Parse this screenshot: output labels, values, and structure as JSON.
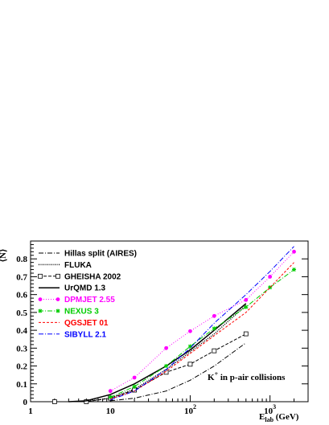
{
  "chart_data": {
    "type": "line",
    "x_scale": "log",
    "xlim": [
      1,
      3000
    ],
    "ylim": [
      0,
      0.9
    ],
    "xlabel": "E_lab (GeV)",
    "xlabel_main": "E",
    "xlabel_sub": "lab",
    "xlabel_unit": " (GeV)",
    "ylabel": "⟨N⟩",
    "annotation": "K+ in p-air collisions",
    "annotation_main": "K",
    "annotation_sup": "+",
    "annotation_rest": " in p-air collisions",
    "x_ticks": [
      {
        "value": 1,
        "label": "1"
      },
      {
        "value": 10,
        "label": "10"
      },
      {
        "value": 100,
        "label": "10",
        "exp": "2"
      },
      {
        "value": 1000,
        "label": "10",
        "exp": "3"
      }
    ],
    "y_ticks": [
      {
        "value": 0,
        "label": "0"
      },
      {
        "value": 0.1,
        "label": "0.1"
      },
      {
        "value": 0.2,
        "label": "0.2"
      },
      {
        "value": 0.3,
        "label": "0.3"
      },
      {
        "value": 0.4,
        "label": "0.4"
      },
      {
        "value": 0.5,
        "label": "0.5"
      },
      {
        "value": 0.6,
        "label": "0.6"
      },
      {
        "value": 0.7,
        "label": "0.7"
      },
      {
        "value": 0.8,
        "label": "0.8"
      }
    ],
    "legend_placement": "top-left",
    "series": [
      {
        "name": "Hillas split (AIRES)",
        "color": "#000000",
        "dash": "6,2,1,2",
        "width": 1,
        "marker": "none",
        "x": [
          10,
          20,
          50,
          100,
          200,
          500
        ],
        "y": [
          0.005,
          0.02,
          0.06,
          0.12,
          0.2,
          0.33
        ]
      },
      {
        "name": "FLUKA",
        "color": "#000000",
        "dash": "1,1.5",
        "width": 1.5,
        "marker": "none",
        "x": [
          5,
          10,
          20,
          50,
          100,
          200,
          500
        ],
        "y": [
          0.003,
          0.02,
          0.07,
          0.18,
          0.28,
          0.38,
          0.54
        ]
      },
      {
        "name": "GHEISHA 2002",
        "color": "#000000",
        "dash": "4,2",
        "width": 1,
        "marker": "square",
        "x": [
          2,
          5,
          10,
          20,
          50,
          100,
          200,
          500
        ],
        "y": [
          0.0,
          0.0,
          0.02,
          0.065,
          0.165,
          0.21,
          0.285,
          0.38
        ]
      },
      {
        "name": "UrQMD 1.3",
        "color": "#000000",
        "dash": "",
        "width": 1.5,
        "marker": "none",
        "x": [
          3,
          5,
          10,
          20,
          50,
          100,
          200,
          500
        ],
        "y": [
          0.0,
          0.005,
          0.04,
          0.1,
          0.2,
          0.29,
          0.4,
          0.55
        ]
      },
      {
        "name": "DPMJET 2.55",
        "color": "#ff00ff",
        "dash": "1,2",
        "width": 1,
        "marker": "circle",
        "x": [
          10,
          20,
          50,
          100,
          200,
          500,
          1000,
          2000
        ],
        "y": [
          0.06,
          0.135,
          0.3,
          0.395,
          0.48,
          0.57,
          0.7,
          0.84
        ]
      },
      {
        "name": "NEXUS 3",
        "color": "#00cc00",
        "dash": "6,2,1,2",
        "width": 1,
        "marker": "star",
        "x": [
          10,
          20,
          50,
          100,
          200,
          500,
          1000,
          2000
        ],
        "y": [
          0.025,
          0.085,
          0.2,
          0.31,
          0.41,
          0.53,
          0.64,
          0.74
        ]
      },
      {
        "name": "QGSJET 01",
        "color": "#ff0000",
        "dash": "3,2",
        "width": 1,
        "marker": "none",
        "x": [
          10,
          20,
          50,
          100,
          200,
          500,
          1000,
          2000
        ],
        "y": [
          0.015,
          0.06,
          0.17,
          0.27,
          0.37,
          0.5,
          0.64,
          0.78
        ]
      },
      {
        "name": "SIBYLL 2.1",
        "color": "#0000ff",
        "dash": "6,2,1,2",
        "width": 1,
        "marker": "none",
        "x": [
          10,
          20,
          50,
          100,
          200,
          500,
          1000,
          2000
        ],
        "y": [
          0.01,
          0.06,
          0.18,
          0.3,
          0.44,
          0.6,
          0.73,
          0.87
        ]
      }
    ]
  }
}
